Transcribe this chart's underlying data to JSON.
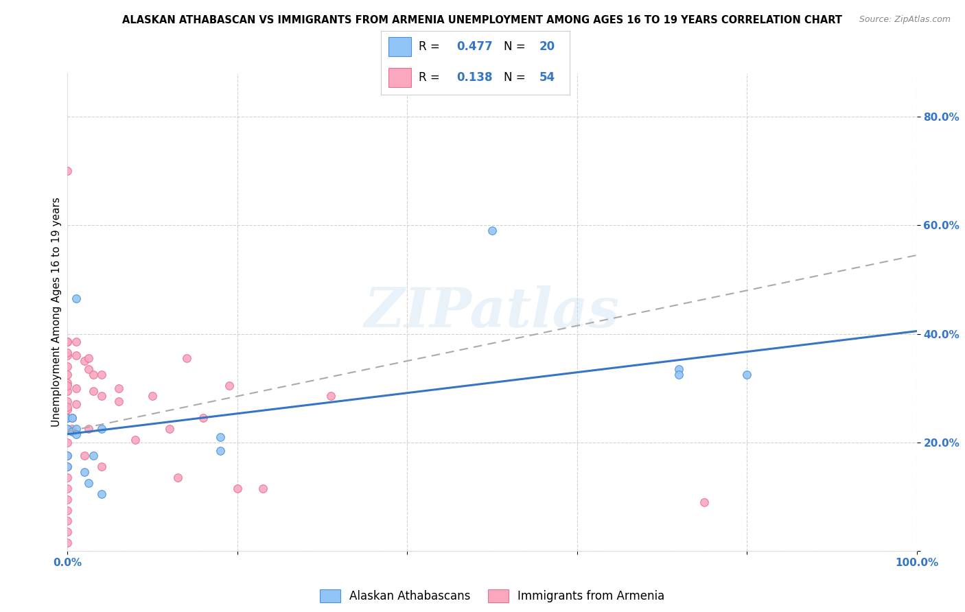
{
  "title": "ALASKAN ATHABASCAN VS IMMIGRANTS FROM ARMENIA UNEMPLOYMENT AMONG AGES 16 TO 19 YEARS CORRELATION CHART",
  "source": "Source: ZipAtlas.com",
  "ylabel": "Unemployment Among Ages 16 to 19 years",
  "xlim": [
    0,
    1.0
  ],
  "ylim": [
    0.0,
    0.88
  ],
  "xtick_positions": [
    0.0,
    0.2,
    0.4,
    0.6,
    0.8,
    1.0
  ],
  "xtick_labels": [
    "0.0%",
    "",
    "",
    "",
    "",
    "100.0%"
  ],
  "ytick_positions": [
    0.0,
    0.2,
    0.4,
    0.6,
    0.8
  ],
  "ytick_labels": [
    "",
    "20.0%",
    "40.0%",
    "60.0%",
    "80.0%"
  ],
  "blue_color": "#92C5F7",
  "pink_color": "#F9A8C0",
  "blue_edge_color": "#4A90D9",
  "pink_edge_color": "#E87090",
  "blue_line_color": "#3575C8",
  "pink_line_color": "#AAAAAA",
  "watermark": "ZIPatlas",
  "blue_scatter_x": [
    0.0,
    0.0,
    0.005,
    0.005,
    0.01,
    0.01,
    0.01,
    0.02,
    0.025,
    0.03,
    0.04,
    0.04,
    0.18,
    0.18,
    0.5,
    0.72,
    0.72,
    0.8,
    0.0,
    0.0
  ],
  "blue_scatter_y": [
    0.245,
    0.225,
    0.245,
    0.22,
    0.465,
    0.225,
    0.215,
    0.145,
    0.125,
    0.175,
    0.225,
    0.105,
    0.21,
    0.185,
    0.59,
    0.335,
    0.325,
    0.325,
    0.175,
    0.155
  ],
  "pink_scatter_x": [
    0.0,
    0.0,
    0.0,
    0.0,
    0.0,
    0.0,
    0.0,
    0.0,
    0.0,
    0.0,
    0.0,
    0.0,
    0.005,
    0.005,
    0.01,
    0.01,
    0.01,
    0.01,
    0.02,
    0.02,
    0.025,
    0.025,
    0.025,
    0.03,
    0.03,
    0.04,
    0.04,
    0.04,
    0.06,
    0.06,
    0.08,
    0.1,
    0.12,
    0.13,
    0.14,
    0.16,
    0.19,
    0.2,
    0.23,
    0.31,
    0.0,
    0.0,
    0.0,
    0.0,
    0.0,
    0.0,
    0.0,
    0.0,
    0.0,
    0.0,
    0.0,
    0.0,
    0.0,
    0.75
  ],
  "pink_scatter_y": [
    0.7,
    0.385,
    0.36,
    0.34,
    0.325,
    0.31,
    0.295,
    0.275,
    0.26,
    0.245,
    0.225,
    0.2,
    0.245,
    0.225,
    0.385,
    0.36,
    0.3,
    0.27,
    0.35,
    0.175,
    0.355,
    0.335,
    0.225,
    0.325,
    0.295,
    0.325,
    0.285,
    0.155,
    0.3,
    0.275,
    0.205,
    0.285,
    0.225,
    0.135,
    0.355,
    0.245,
    0.305,
    0.115,
    0.115,
    0.285,
    0.175,
    0.155,
    0.135,
    0.115,
    0.095,
    0.075,
    0.055,
    0.035,
    0.015,
    0.385,
    0.365,
    0.305,
    0.265,
    0.09
  ],
  "blue_line_x": [
    0.0,
    1.0
  ],
  "blue_line_y": [
    0.215,
    0.405
  ],
  "pink_line_x": [
    0.0,
    1.0
  ],
  "pink_line_y": [
    0.22,
    0.545
  ],
  "marker_size": 70,
  "grid_color": "#CCCCCC",
  "background_color": "#FFFFFF",
  "tick_color": "#3575C8",
  "title_fontsize": 10.5,
  "source_fontsize": 9,
  "ylabel_fontsize": 11,
  "tick_fontsize": 11
}
